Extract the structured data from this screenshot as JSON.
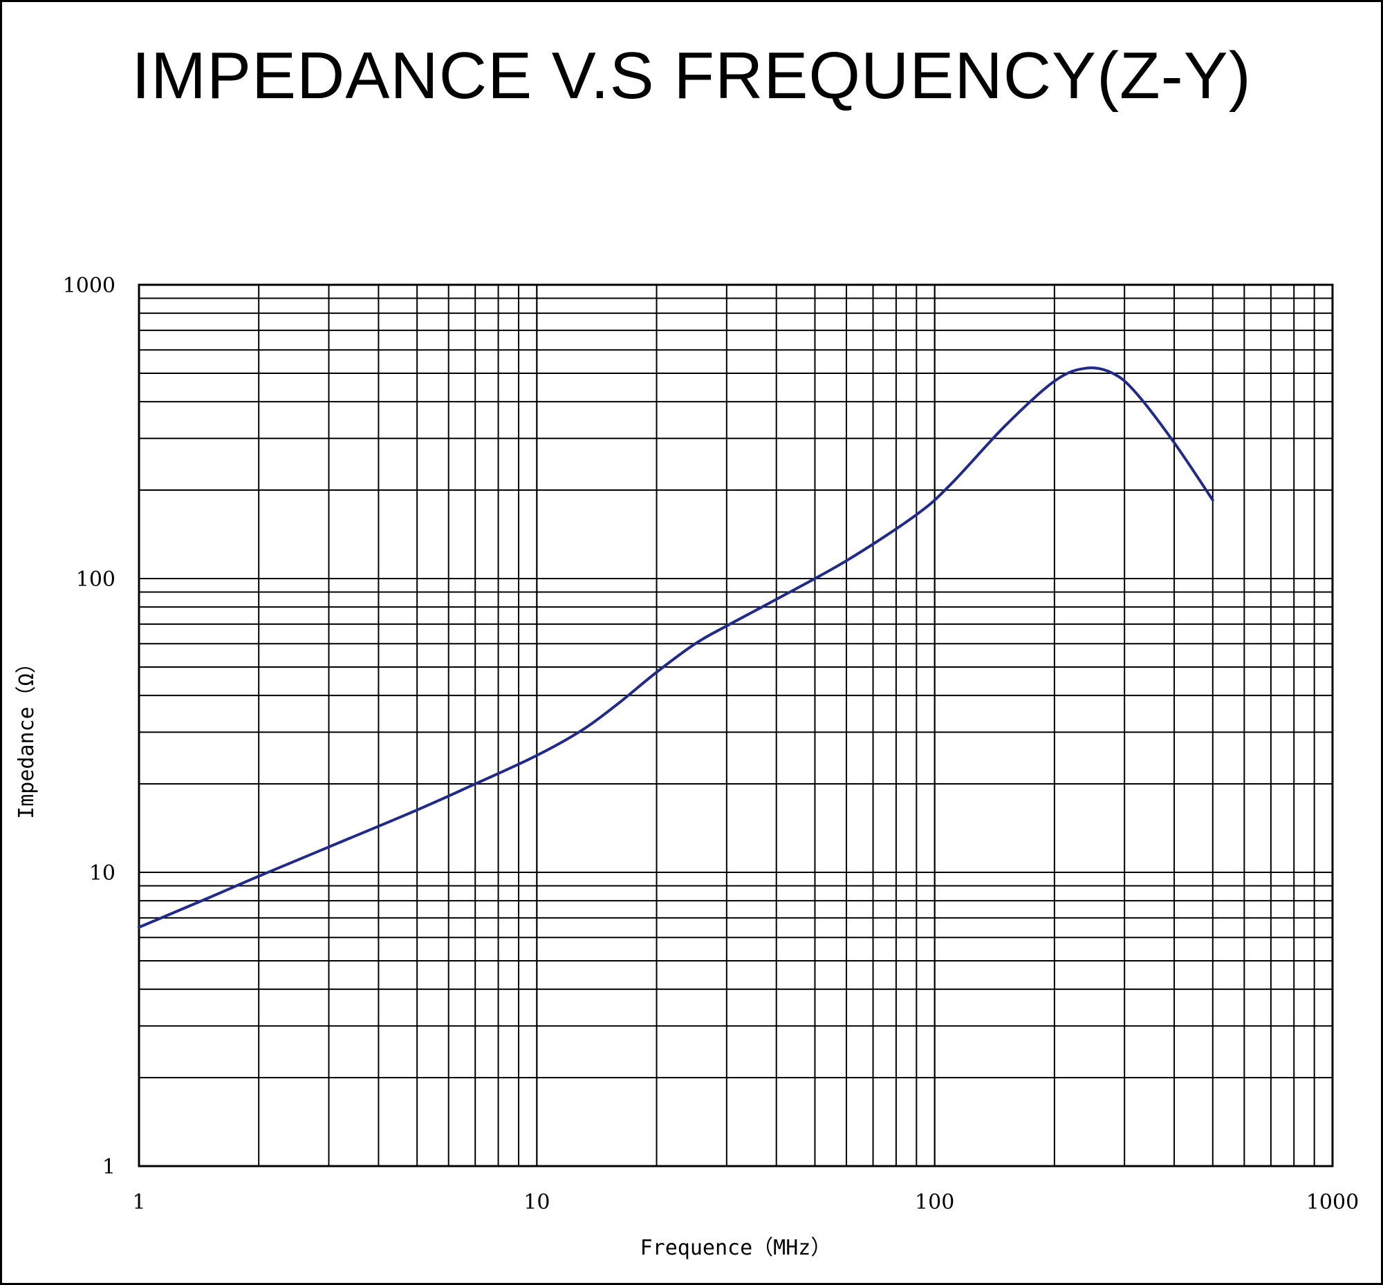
{
  "chart_data": {
    "type": "line",
    "title": "IMPEDANCE V.S FREQUENCY(Z-Y)",
    "xlabel": "Frequence（MHz）",
    "ylabel": "Impedance（Ω）",
    "x_scale": "log",
    "y_scale": "log",
    "xlim": [
      1,
      1000
    ],
    "ylim": [
      1,
      1000
    ],
    "x_ticks": [
      "1",
      "10",
      "100",
      "1000"
    ],
    "y_ticks": [
      "1",
      "10",
      "100",
      "1000"
    ],
    "grid": true,
    "series": [
      {
        "color": "#1f2a8c",
        "x": [
          1,
          1.5,
          2,
          3,
          5,
          7,
          10,
          13,
          16,
          20,
          25,
          30,
          40,
          60,
          90,
          110,
          150,
          200,
          240,
          280,
          320,
          400,
          500
        ],
        "y": [
          6.5,
          8.2,
          9.7,
          12.2,
          16.3,
          20,
          25,
          30.5,
          37.5,
          48,
          60,
          69,
          85,
          115,
          165,
          210,
          330,
          470,
          520,
          500,
          430,
          290,
          185
        ]
      }
    ]
  }
}
